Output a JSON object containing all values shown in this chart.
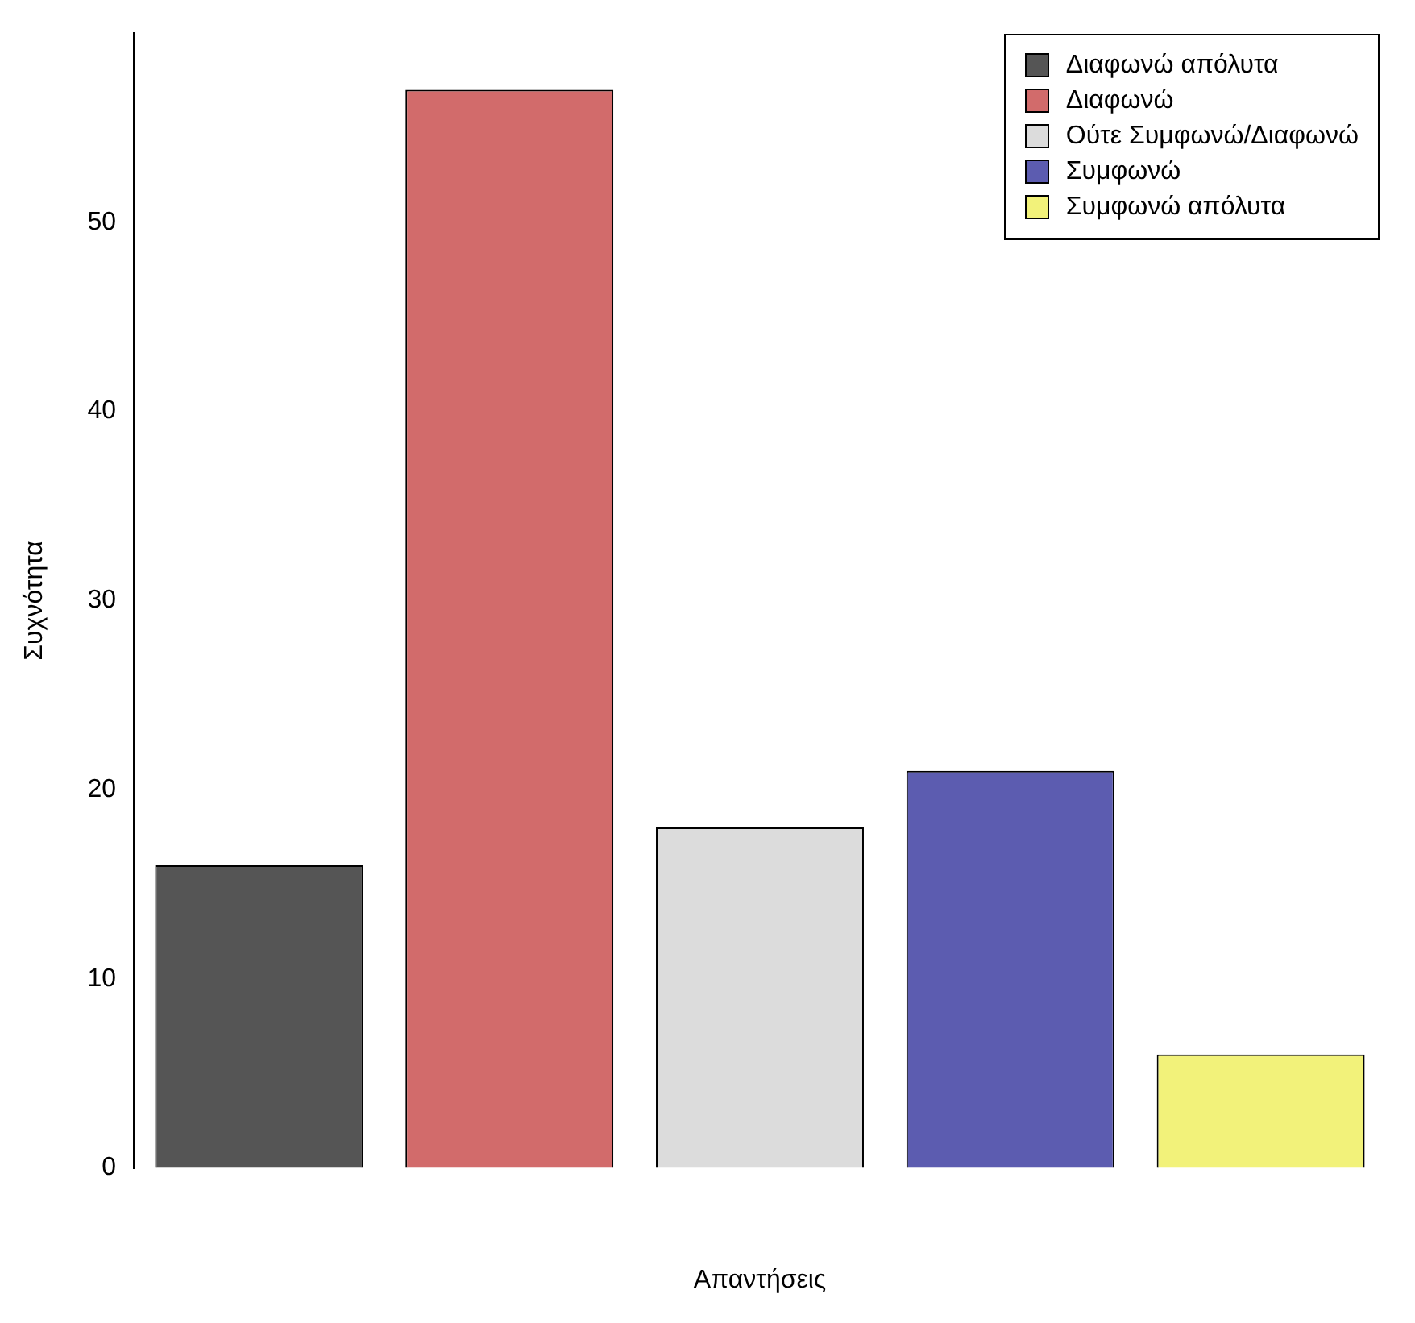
{
  "chart_data": {
    "type": "bar",
    "xlabel": "Απαντήσεις",
    "ylabel": "Συχνότητα",
    "categories": [
      null,
      null,
      null,
      null,
      null
    ],
    "series": [
      {
        "name": "Διαφωνώ απόλυτα",
        "color": "#555555",
        "values": [
          16,
          null,
          null,
          null,
          null
        ]
      },
      {
        "name": "Διαφωνώ",
        "color": "#d26b6b",
        "values": [
          null,
          57,
          null,
          null,
          null
        ]
      },
      {
        "name": "Ούτε Συμφωνώ/Διαφωνώ",
        "color": "#dcdcdc",
        "values": [
          null,
          null,
          18,
          null,
          null
        ]
      },
      {
        "name": "Συμφωνώ",
        "color": "#5c5cb0",
        "values": [
          null,
          null,
          null,
          21,
          null
        ]
      },
      {
        "name": "Συμφωνώ απόλυτα",
        "color": "#f2f27a",
        "values": [
          null,
          null,
          null,
          null,
          6
        ]
      }
    ],
    "stacked": true,
    "ylim": [
      0,
      60
    ],
    "yticks": [
      0,
      10,
      20,
      30,
      40,
      50
    ],
    "grid": false,
    "legend": "top right",
    "tick_labels": "y"
  }
}
